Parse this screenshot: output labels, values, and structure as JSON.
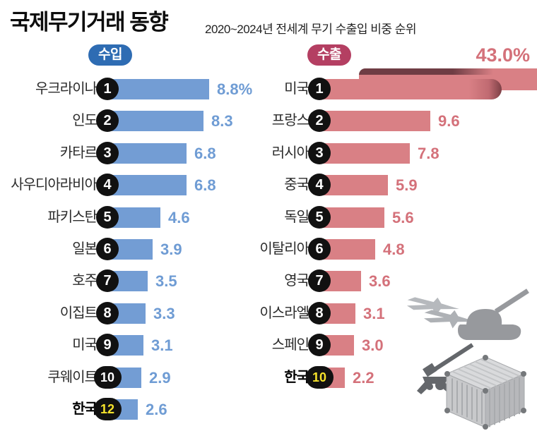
{
  "header": {
    "title": "국제무기거래 동향",
    "subtitle": "2020~2024년 전세계 무기 수출입 비중 순위"
  },
  "chart_data": {
    "type": "bar",
    "orientation": "horizontal",
    "unit": "percent share of world arms transfers, 2020~2024",
    "highlight_rank_color": "#f6e32b",
    "groups": [
      {
        "key": "imports",
        "badge_label": "수입",
        "badge_color": "#2e6cb3",
        "bar_color": "#739dd4",
        "value_color": "#6f9cd4",
        "entries": [
          {
            "rank": "1",
            "country": "우크라이나",
            "value": 8.8,
            "value_label": "8.8%"
          },
          {
            "rank": "2",
            "country": "인도",
            "value": 8.3,
            "value_label": "8.3"
          },
          {
            "rank": "3",
            "country": "카타르",
            "value": 6.8,
            "value_label": "6.8"
          },
          {
            "rank": "4",
            "country": "사우디아라비아",
            "value": 6.8,
            "value_label": "6.8"
          },
          {
            "rank": "5",
            "country": "파키스탄",
            "value": 4.6,
            "value_label": "4.6"
          },
          {
            "rank": "6",
            "country": "일본",
            "value": 3.9,
            "value_label": "3.9"
          },
          {
            "rank": "7",
            "country": "호주",
            "value": 3.5,
            "value_label": "3.5"
          },
          {
            "rank": "8",
            "country": "이집트",
            "value": 3.3,
            "value_label": "3.3"
          },
          {
            "rank": "9",
            "country": "미국",
            "value": 3.1,
            "value_label": "3.1"
          },
          {
            "rank": "10",
            "country": "쿠웨이트",
            "value": 2.9,
            "value_label": "2.9"
          },
          {
            "rank": "12",
            "country": "한국",
            "value": 2.6,
            "value_label": "2.6",
            "highlight": true
          }
        ]
      },
      {
        "key": "exports",
        "badge_label": "수출",
        "badge_color": "#b43f62",
        "bar_color": "#d98085",
        "value_color": "#d4717a",
        "fold_shadow_color": "#6f3d44",
        "fold_edge_color": "#7d4046",
        "entries": [
          {
            "rank": "1",
            "country": "미국",
            "value": 43.0,
            "value_label": "43.0%",
            "folded": true
          },
          {
            "rank": "2",
            "country": "프랑스",
            "value": 9.6,
            "value_label": "9.6"
          },
          {
            "rank": "3",
            "country": "러시아",
            "value": 7.8,
            "value_label": "7.8"
          },
          {
            "rank": "4",
            "country": "중국",
            "value": 5.9,
            "value_label": "5.9"
          },
          {
            "rank": "5",
            "country": "독일",
            "value": 5.6,
            "value_label": "5.6"
          },
          {
            "rank": "6",
            "country": "이탈리아",
            "value": 4.8,
            "value_label": "4.8"
          },
          {
            "rank": "7",
            "country": "영국",
            "value": 3.6,
            "value_label": "3.6"
          },
          {
            "rank": "8",
            "country": "이스라엘",
            "value": 3.1,
            "value_label": "3.1"
          },
          {
            "rank": "9",
            "country": "스페인",
            "value": 3.0,
            "value_label": "3.0"
          },
          {
            "rank": "10",
            "country": "한국",
            "value": 2.2,
            "value_label": "2.2",
            "highlight": true
          }
        ]
      }
    ],
    "decoration_icons": [
      "fighter-jet-icon",
      "tank-icon",
      "howitzer-icon",
      "shipping-container-icon"
    ]
  }
}
